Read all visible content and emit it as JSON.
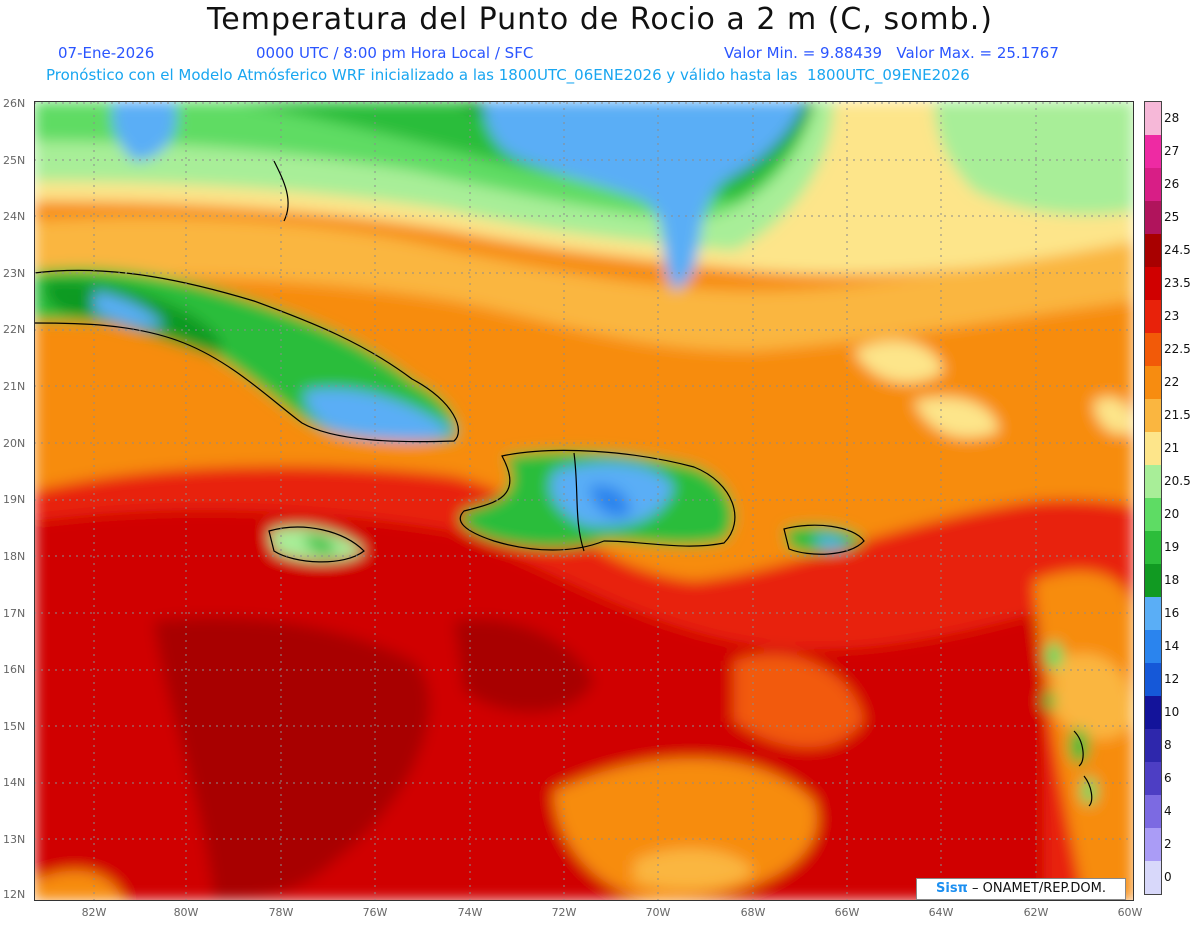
{
  "header": {
    "title": "Temperatura del Punto de Rocio a 2 m (C, somb.)",
    "date": "07-Ene-2026",
    "time": "0000 UTC / 8:00 pm Hora Local / SFC",
    "minmax": "Valor Min. = 9.88439   Valor Max. = 25.1767",
    "model": "Pronóstico con el Modelo Atmósferico WRF inicializado a las 1800UTC_06ENE2026 y válido hasta las  1800UTC_09ENE2026"
  },
  "axes": {
    "lat_labels": [
      "26N",
      "25N",
      "24N",
      "23N",
      "22N",
      "21N",
      "20N",
      "19N",
      "18N",
      "17N",
      "16N",
      "15N",
      "14N",
      "13N",
      "12N"
    ],
    "lon_labels": [
      "82W",
      "80W",
      "78W",
      "76W",
      "74W",
      "72W",
      "70W",
      "68W",
      "66W",
      "64W",
      "62W",
      "60W"
    ]
  },
  "colorbar": {
    "labels": [
      "28",
      "27",
      "26",
      "25",
      "24.5",
      "23.5",
      "23",
      "22.5",
      "22",
      "21.5",
      "21",
      "20.5",
      "20",
      "19",
      "18",
      "16",
      "14",
      "12",
      "10",
      "8",
      "6",
      "4",
      "2",
      "0"
    ],
    "colors": [
      "#f6b8d8",
      "#ee2aa3",
      "#d81e86",
      "#b0145c",
      "#a80000",
      "#d00000",
      "#e8220a",
      "#f25a08",
      "#f78c10",
      "#fab640",
      "#fde58a",
      "#a8ee98",
      "#5edc64",
      "#2cbd3a",
      "#119a22",
      "#5aaef6",
      "#2a84ee",
      "#1558d8",
      "#13139a",
      "#2e27ac",
      "#4d3ec4",
      "#7c6ae2",
      "#aa9cf6",
      "#d8d8fa"
    ]
  },
  "credit": {
    "brand": "Sisπ",
    "text": " – ONAMET/REP.DOM."
  }
}
